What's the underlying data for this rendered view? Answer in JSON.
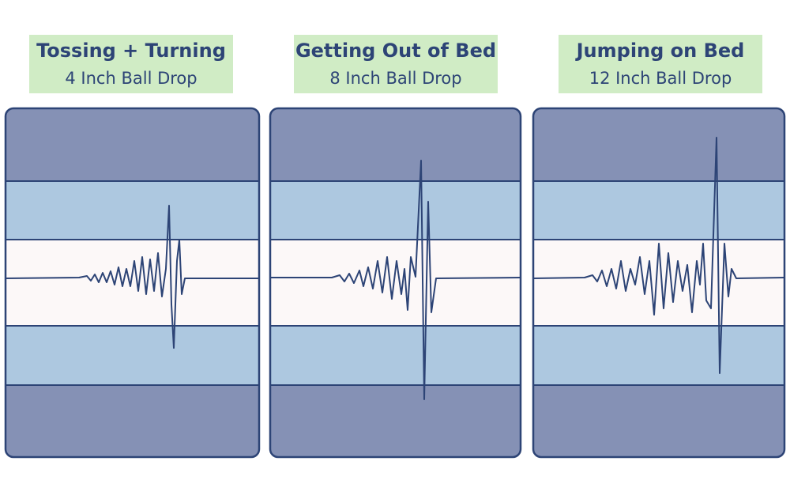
{
  "panels": [
    {
      "title": "Tossing + Turning",
      "subtitle": "4 Inch Ball Drop"
    },
    {
      "title": "Getting Out of Bed",
      "subtitle": "8 Inch Ball Drop"
    },
    {
      "title": "Jumping on Bed",
      "subtitle": "12 Inch Ball Drop"
    }
  ]
}
